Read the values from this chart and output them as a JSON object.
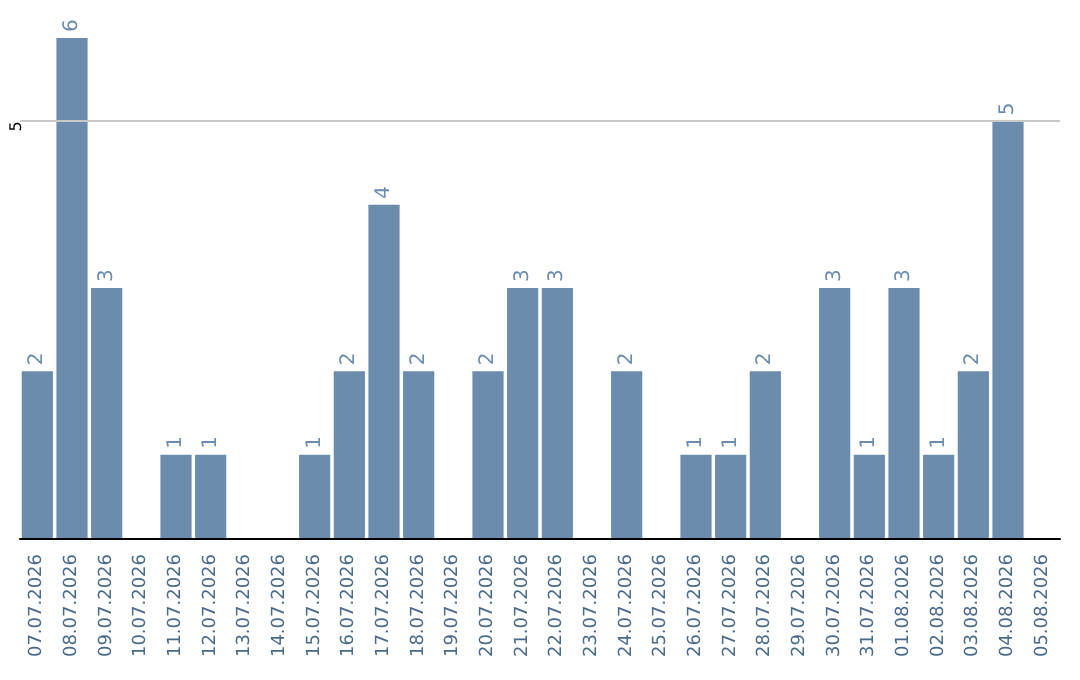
{
  "chart_data": {
    "type": "bar",
    "categories": [
      "07.07.2026",
      "08.07.2026",
      "09.07.2026",
      "10.07.2026",
      "11.07.2026",
      "12.07.2026",
      "13.07.2026",
      "14.07.2026",
      "15.07.2026",
      "16.07.2026",
      "17.07.2026",
      "18.07.2026",
      "19.07.2026",
      "20.07.2026",
      "21.07.2026",
      "22.07.2026",
      "23.07.2026",
      "24.07.2026",
      "25.07.2026",
      "26.07.2026",
      "27.07.2026",
      "28.07.2026",
      "29.07.2026",
      "30.07.2026",
      "31.07.2026",
      "01.08.2026",
      "02.08.2026",
      "03.08.2026",
      "04.08.2026",
      "05.08.2026"
    ],
    "values": [
      2,
      6,
      3,
      null,
      1,
      1,
      null,
      null,
      1,
      2,
      4,
      2,
      null,
      2,
      3,
      3,
      null,
      2,
      null,
      1,
      1,
      2,
      null,
      3,
      1,
      3,
      1,
      2,
      5,
      null
    ],
    "color": "#6b8cad",
    "ref_lines": [
      {
        "axis": "y",
        "value": 5,
        "label": "5",
        "color": "#c8c8c8"
      }
    ],
    "data_labels": true
  }
}
